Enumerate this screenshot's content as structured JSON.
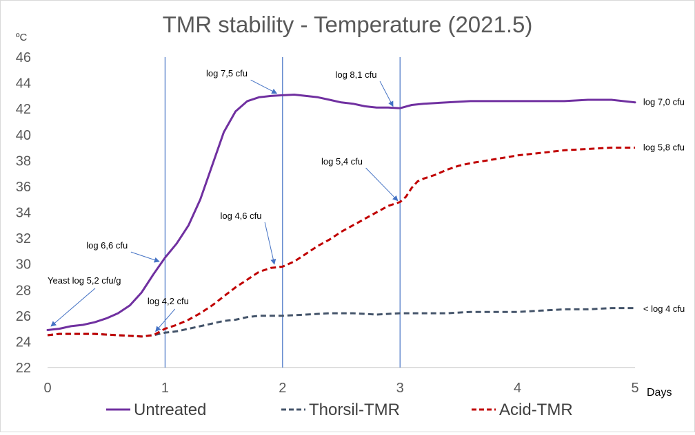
{
  "chart_data": {
    "type": "line",
    "title": "TMR stability - Temperature (2021.5)",
    "ylabel": "ºC",
    "xlabel": "Days",
    "xlim": [
      0,
      5
    ],
    "ylim": [
      22,
      46
    ],
    "xticks": [
      0,
      1,
      2,
      3,
      4,
      5
    ],
    "yticks": [
      22,
      24,
      26,
      28,
      30,
      32,
      34,
      36,
      38,
      40,
      42,
      44,
      46
    ],
    "grid": false,
    "day_markers": [
      1,
      2,
      3
    ],
    "legend_position": "bottom",
    "series": [
      {
        "name": "Untreated",
        "color": "#7030a0",
        "style": "solid",
        "points": [
          [
            0,
            24.9
          ],
          [
            0.1,
            25.0
          ],
          [
            0.2,
            25.2
          ],
          [
            0.3,
            25.3
          ],
          [
            0.4,
            25.5
          ],
          [
            0.5,
            25.8
          ],
          [
            0.6,
            26.2
          ],
          [
            0.7,
            26.8
          ],
          [
            0.8,
            27.8
          ],
          [
            0.9,
            29.2
          ],
          [
            1.0,
            30.5
          ],
          [
            1.1,
            31.6
          ],
          [
            1.2,
            33.0
          ],
          [
            1.3,
            35.0
          ],
          [
            1.4,
            37.6
          ],
          [
            1.5,
            40.2
          ],
          [
            1.6,
            41.8
          ],
          [
            1.7,
            42.6
          ],
          [
            1.8,
            42.9
          ],
          [
            1.9,
            43.0
          ],
          [
            2.0,
            43.05
          ],
          [
            2.1,
            43.1
          ],
          [
            2.2,
            43.0
          ],
          [
            2.3,
            42.9
          ],
          [
            2.4,
            42.7
          ],
          [
            2.5,
            42.5
          ],
          [
            2.6,
            42.4
          ],
          [
            2.7,
            42.2
          ],
          [
            2.8,
            42.1
          ],
          [
            2.9,
            42.1
          ],
          [
            3.0,
            42.05
          ],
          [
            3.1,
            42.3
          ],
          [
            3.2,
            42.4
          ],
          [
            3.4,
            42.5
          ],
          [
            3.6,
            42.6
          ],
          [
            3.8,
            42.6
          ],
          [
            4.0,
            42.6
          ],
          [
            4.2,
            42.6
          ],
          [
            4.4,
            42.6
          ],
          [
            4.6,
            42.7
          ],
          [
            4.8,
            42.7
          ],
          [
            5.0,
            42.5
          ]
        ]
      },
      {
        "name": "Thorsil-TMR",
        "color": "#44546a",
        "style": "dashed",
        "points": [
          [
            0,
            24.5
          ],
          [
            0.1,
            24.6
          ],
          [
            0.2,
            24.6
          ],
          [
            0.4,
            24.6
          ],
          [
            0.6,
            24.5
          ],
          [
            0.8,
            24.4
          ],
          [
            0.9,
            24.5
          ],
          [
            1.0,
            24.7
          ],
          [
            1.1,
            24.8
          ],
          [
            1.2,
            25.0
          ],
          [
            1.3,
            25.2
          ],
          [
            1.4,
            25.4
          ],
          [
            1.5,
            25.6
          ],
          [
            1.6,
            25.7
          ],
          [
            1.7,
            25.9
          ],
          [
            1.8,
            26.0
          ],
          [
            1.9,
            26.0
          ],
          [
            2.0,
            26.0
          ],
          [
            2.2,
            26.1
          ],
          [
            2.4,
            26.2
          ],
          [
            2.6,
            26.2
          ],
          [
            2.8,
            26.1
          ],
          [
            3.0,
            26.2
          ],
          [
            3.2,
            26.2
          ],
          [
            3.4,
            26.2
          ],
          [
            3.6,
            26.3
          ],
          [
            3.8,
            26.3
          ],
          [
            4.0,
            26.3
          ],
          [
            4.2,
            26.4
          ],
          [
            4.4,
            26.5
          ],
          [
            4.6,
            26.5
          ],
          [
            4.8,
            26.6
          ],
          [
            5.0,
            26.6
          ]
        ]
      },
      {
        "name": "Acid-TMR",
        "color": "#c00000",
        "style": "dashed",
        "points": [
          [
            0,
            24.5
          ],
          [
            0.1,
            24.6
          ],
          [
            0.2,
            24.6
          ],
          [
            0.4,
            24.6
          ],
          [
            0.6,
            24.5
          ],
          [
            0.8,
            24.4
          ],
          [
            0.9,
            24.5
          ],
          [
            1.0,
            25.0
          ],
          [
            1.1,
            25.3
          ],
          [
            1.2,
            25.7
          ],
          [
            1.3,
            26.2
          ],
          [
            1.4,
            26.8
          ],
          [
            1.5,
            27.5
          ],
          [
            1.6,
            28.2
          ],
          [
            1.7,
            28.8
          ],
          [
            1.8,
            29.4
          ],
          [
            1.9,
            29.7
          ],
          [
            2.0,
            29.8
          ],
          [
            2.1,
            30.2
          ],
          [
            2.2,
            30.8
          ],
          [
            2.3,
            31.4
          ],
          [
            2.4,
            31.9
          ],
          [
            2.5,
            32.5
          ],
          [
            2.6,
            33.0
          ],
          [
            2.7,
            33.5
          ],
          [
            2.8,
            34.0
          ],
          [
            2.9,
            34.5
          ],
          [
            3.0,
            34.8
          ],
          [
            3.05,
            35.2
          ],
          [
            3.1,
            35.9
          ],
          [
            3.15,
            36.4
          ],
          [
            3.2,
            36.6
          ],
          [
            3.3,
            36.9
          ],
          [
            3.4,
            37.3
          ],
          [
            3.5,
            37.6
          ],
          [
            3.6,
            37.8
          ],
          [
            3.8,
            38.1
          ],
          [
            4.0,
            38.4
          ],
          [
            4.2,
            38.6
          ],
          [
            4.4,
            38.8
          ],
          [
            4.6,
            38.9
          ],
          [
            4.8,
            39.0
          ],
          [
            5.0,
            39.0
          ]
        ]
      }
    ],
    "annotations": [
      {
        "text": "Yeast log 5,2 cfu/g",
        "tx": 0.0,
        "ty": 28.5,
        "ax": 0.03,
        "ay": 25.2,
        "arrow": true
      },
      {
        "text": "log 4,2 cfu",
        "tx": 0.85,
        "ty": 26.9,
        "ax": 0.92,
        "ay": 24.8,
        "arrow": true
      },
      {
        "text": "log 6,6 cfu",
        "tx": 0.33,
        "ty": 31.2,
        "ax": 0.95,
        "ay": 30.2,
        "arrow": true
      },
      {
        "text": "log 4,6 cfu",
        "tx": 1.47,
        "ty": 33.5,
        "ax": 1.93,
        "ay": 30.0,
        "arrow": true
      },
      {
        "text": "log 7,5 cfu",
        "tx": 1.35,
        "ty": 44.5,
        "ax": 1.95,
        "ay": 43.2,
        "arrow": true
      },
      {
        "text": "log 8,1 cfu",
        "tx": 2.45,
        "ty": 44.4,
        "ax": 2.94,
        "ay": 42.2,
        "arrow": true
      },
      {
        "text": "log 5,4 cfu",
        "tx": 2.33,
        "ty": 37.7,
        "ax": 2.98,
        "ay": 34.9,
        "arrow": true
      },
      {
        "text": "log 7,0 cfu",
        "tx": 5.07,
        "ty": 42.3,
        "arrow": false
      },
      {
        "text": "log 5,8 cfu",
        "tx": 5.07,
        "ty": 38.8,
        "arrow": false
      },
      {
        "text": "< log 4 cfu",
        "tx": 5.07,
        "ty": 26.3,
        "arrow": false
      }
    ]
  }
}
